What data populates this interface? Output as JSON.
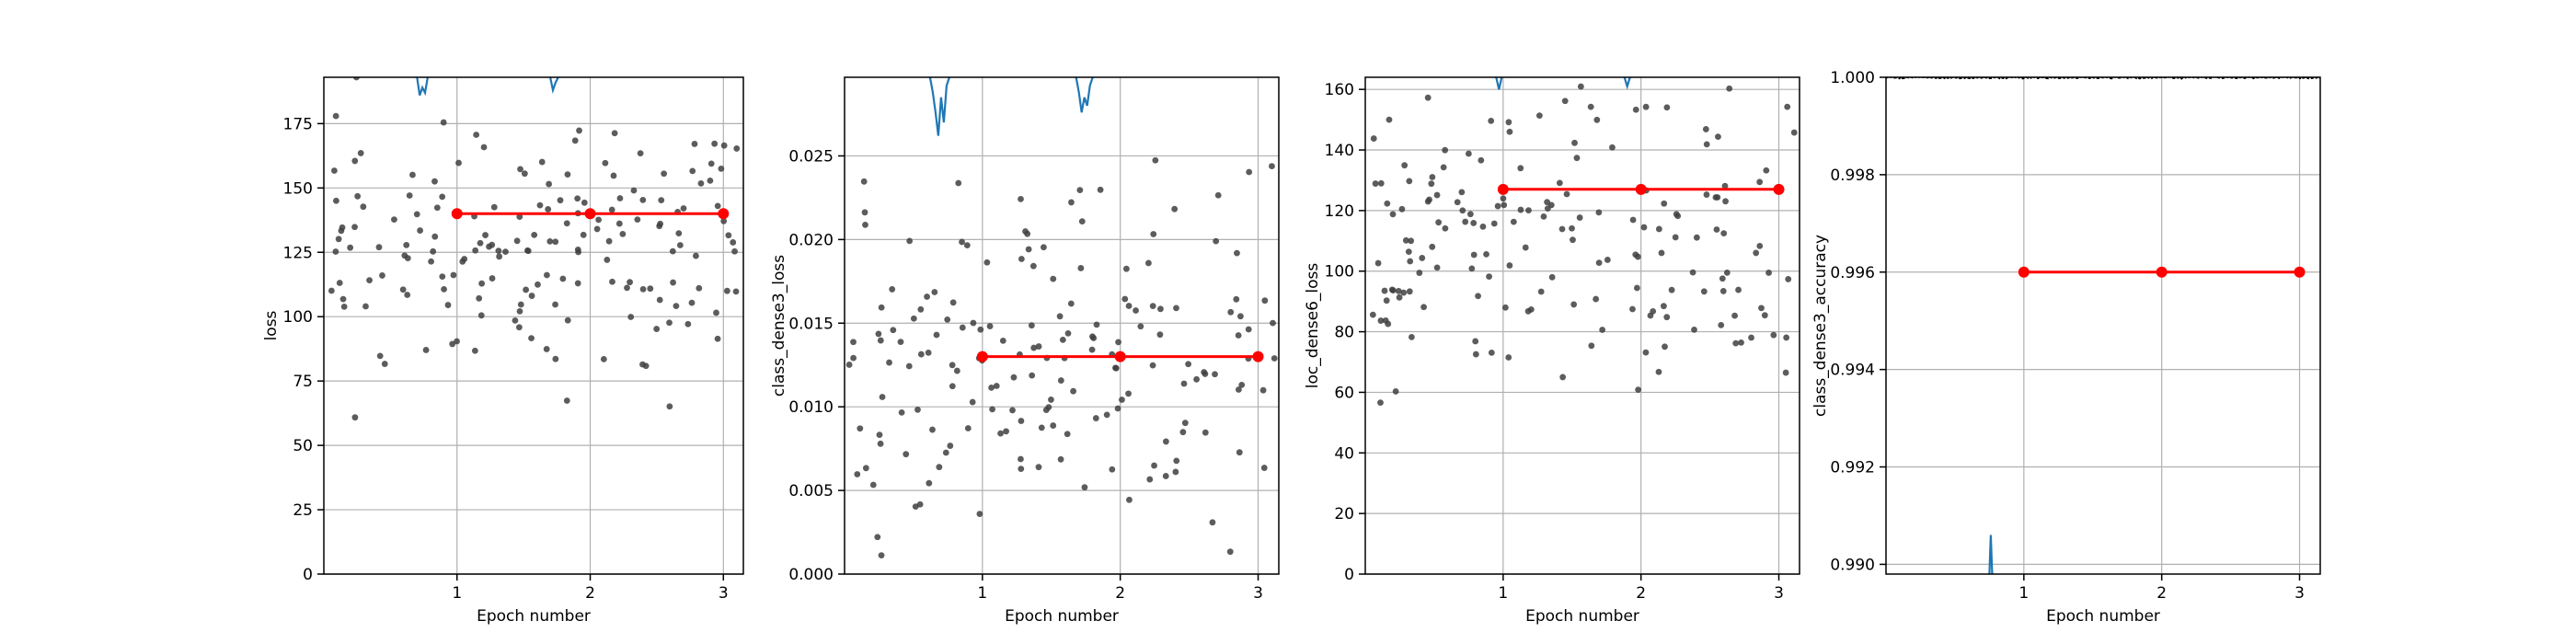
{
  "chart_data": [
    {
      "type": "scatter",
      "xlabel": "Epoch number",
      "ylabel": "loss",
      "xlim": [
        0.0,
        3.15
      ],
      "ylim": [
        0,
        193
      ],
      "xticks": [
        1,
        2,
        3
      ],
      "yticks": [
        0,
        25,
        50,
        75,
        100,
        125,
        150,
        175
      ],
      "ytick_labels": [
        "0",
        "25",
        "50",
        "75",
        "100",
        "125",
        "150",
        "175"
      ],
      "grid": true,
      "series": [
        {
          "kind": "epoch_mean",
          "color": "#ff0000",
          "x": [
            1,
            2,
            3
          ],
          "y": [
            140,
            140,
            140
          ]
        },
        {
          "kind": "batch_scatter",
          "color": "#404040",
          "n": 170,
          "center": 125,
          "spread": 34,
          "seed": 11
        },
        {
          "kind": "batch_line",
          "color": "#1f77b4",
          "segments": [
            {
              "x": [
                0.7,
                0.72,
                0.74,
                0.76,
                0.78
              ],
              "y": [
                193,
                186,
                189,
                187,
                193
              ]
            },
            {
              "x": [
                1.7,
                1.72,
                1.74,
                1.76
              ],
              "y": [
                193,
                188,
                191,
                193
              ]
            }
          ]
        }
      ]
    },
    {
      "type": "scatter",
      "xlabel": "Epoch number",
      "ylabel": "class_dense3_loss",
      "xlim": [
        0.0,
        3.15
      ],
      "ylim": [
        0,
        0.0297
      ],
      "xticks": [
        1,
        2,
        3
      ],
      "yticks": [
        0.0,
        0.005,
        0.01,
        0.015,
        0.02,
        0.025
      ],
      "ytick_labels": [
        "0.000",
        "0.005",
        "0.010",
        "0.015",
        "0.020",
        "0.025"
      ],
      "grid": true,
      "series": [
        {
          "kind": "epoch_mean",
          "color": "#ff0000",
          "x": [
            1,
            2,
            3
          ],
          "y": [
            0.013,
            0.013,
            0.013
          ]
        },
        {
          "kind": "batch_scatter",
          "color": "#404040",
          "n": 170,
          "center": 0.013,
          "spread": 0.0075,
          "seed": 23
        },
        {
          "kind": "batch_line",
          "color": "#1f77b4",
          "segments": [
            {
              "x": [
                0.62,
                0.64,
                0.66,
                0.68,
                0.7,
                0.72,
                0.74,
                0.76
              ],
              "y": [
                0.0297,
                0.0288,
                0.0276,
                0.0262,
                0.0285,
                0.027,
                0.0292,
                0.0297
              ]
            },
            {
              "x": [
                1.68,
                1.7,
                1.72,
                1.74,
                1.76,
                1.78,
                1.8
              ],
              "y": [
                0.0297,
                0.0288,
                0.0276,
                0.0285,
                0.028,
                0.0292,
                0.0297
              ]
            }
          ]
        }
      ]
    },
    {
      "type": "scatter",
      "xlabel": "Epoch number",
      "ylabel": "loc_dense6_loss",
      "xlim": [
        0.0,
        3.15
      ],
      "ylim": [
        0,
        164
      ],
      "xticks": [
        1,
        2,
        3
      ],
      "yticks": [
        0,
        20,
        40,
        60,
        80,
        100,
        120,
        140,
        160
      ],
      "ytick_labels": [
        "0",
        "20",
        "40",
        "60",
        "80",
        "100",
        "120",
        "140",
        "160"
      ],
      "grid": true,
      "series": [
        {
          "kind": "epoch_mean",
          "color": "#ff0000",
          "x": [
            1,
            2,
            3
          ],
          "y": [
            127,
            127,
            127
          ]
        },
        {
          "kind": "batch_scatter",
          "color": "#404040",
          "n": 170,
          "center": 108,
          "spread": 33,
          "seed": 37
        },
        {
          "kind": "batch_line",
          "color": "#1f77b4",
          "segments": [
            {
              "x": [
                0.95,
                0.97,
                0.99
              ],
              "y": [
                164,
                160,
                164
              ]
            },
            {
              "x": [
                1.88,
                1.9,
                1.92
              ],
              "y": [
                164,
                161,
                164
              ]
            }
          ]
        }
      ]
    },
    {
      "type": "line",
      "xlabel": "Epoch number",
      "ylabel": "class_dense3_accuracy",
      "xlim": [
        0.0,
        3.15
      ],
      "ylim": [
        0.9898,
        1.0
      ],
      "xticks": [
        1,
        2,
        3
      ],
      "yticks": [
        0.99,
        0.992,
        0.994,
        0.996,
        0.998,
        1.0
      ],
      "ytick_labels": [
        "0.990",
        "0.992",
        "0.994",
        "0.996",
        "0.998",
        "1.000"
      ],
      "grid": true,
      "series": [
        {
          "kind": "epoch_mean",
          "color": "#ff0000",
          "x": [
            1,
            2,
            3
          ],
          "y": [
            0.996,
            0.996,
            0.996
          ]
        },
        {
          "kind": "batch_top_band",
          "color": "#000000",
          "y": 1.0
        },
        {
          "kind": "batch_line",
          "color": "#1f77b4",
          "segments": [
            {
              "x": [
                0.74,
                0.75,
                0.76,
                0.77,
                0.78
              ],
              "y": [
                0.9898,
                0.9898,
                0.9906,
                0.9898,
                0.9898
              ]
            }
          ]
        }
      ]
    }
  ]
}
